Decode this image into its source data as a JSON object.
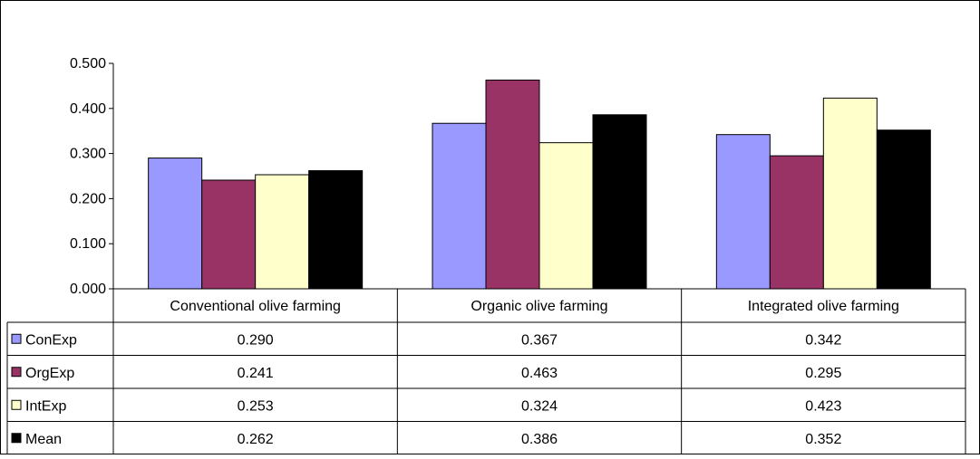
{
  "chart_data": {
    "type": "bar",
    "title": "",
    "xlabel": "",
    "ylabel": "",
    "ylim": [
      0,
      0.5
    ],
    "yticks": [
      "0.000",
      "0.100",
      "0.200",
      "0.300",
      "0.400",
      "0.500"
    ],
    "grid": false,
    "legend": "data-table",
    "categories": [
      "Conventional olive farming",
      "Organic olive farming",
      "Integrated olive farming"
    ],
    "series": [
      {
        "name": "ConExp",
        "color": "#9999ff",
        "values": [
          0.29,
          0.367,
          0.342
        ],
        "labels": [
          "0.290",
          "0.367",
          "0.342"
        ]
      },
      {
        "name": "OrgExp",
        "color": "#993366",
        "values": [
          0.241,
          0.463,
          0.295
        ],
        "labels": [
          "0.241",
          "0.463",
          "0.295"
        ]
      },
      {
        "name": "IntExp",
        "color": "#ffffcc",
        "values": [
          0.253,
          0.324,
          0.423
        ],
        "labels": [
          "0.253",
          "0.324",
          "0.423"
        ]
      },
      {
        "name": "Mean",
        "color": "#000000",
        "values": [
          0.262,
          0.386,
          0.352
        ],
        "labels": [
          "0.262",
          "0.386",
          "0.352"
        ]
      }
    ]
  }
}
